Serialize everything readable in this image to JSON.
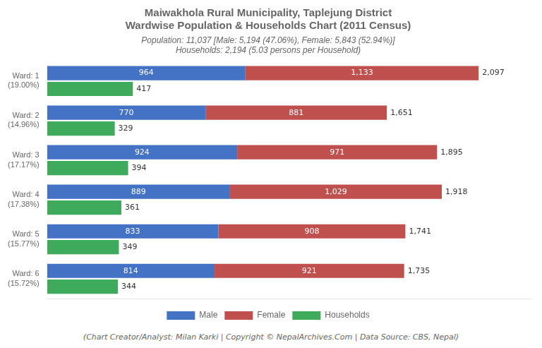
{
  "chart_data": {
    "type": "bar",
    "orientation": "horizontal",
    "title": [
      "Maiwakhola Rural Municipality, Taplejung District",
      "Wardwise Population & Households Chart (2011 Census)"
    ],
    "subtitle": [
      "Population: 11,037 [Male: 5,194 (47.06%), Female: 5,843 (52.94%)]",
      "Households: 2,194 (5.03 persons per Household)"
    ],
    "annotations": [
      "(Chart Creator/Analyst: Milan Karki | Copyright © NepalArchives.Com | Data Source: CBS, Nepal)"
    ],
    "categories": [
      "Ward: 1\n(19.00%)",
      "Ward: 2\n(14.96%)",
      "Ward: 3\n(17.17%)",
      "Ward: 4\n(17.38%)",
      "Ward: 5\n(15.77%)",
      "Ward: 6\n(15.72%)"
    ],
    "series": [
      {
        "name": "Male",
        "color": "#4472C4",
        "values": [
          964,
          770,
          924,
          889,
          833,
          814
        ]
      },
      {
        "name": "Female",
        "color": "#C0504D",
        "values": [
          1133,
          881,
          971,
          1029,
          908,
          921
        ],
        "value_labels": [
          "1,133",
          "881",
          "971",
          "1,029",
          "908",
          "921"
        ]
      },
      {
        "name": "Households",
        "color": "#3DAA5C",
        "values": [
          417,
          329,
          394,
          361,
          349,
          344
        ]
      }
    ],
    "stacked": [
      "Male",
      "Female"
    ],
    "totals": [
      2097,
      1651,
      1895,
      1918,
      1741,
      1735
    ],
    "total_labels": [
      "2,097",
      "1,651",
      "1,895",
      "1,918",
      "1,741",
      "1,735"
    ],
    "data_labels": true,
    "xlim": [
      0,
      2350
    ],
    "tick_labels": "y",
    "grid": false,
    "legend": "bottom"
  }
}
